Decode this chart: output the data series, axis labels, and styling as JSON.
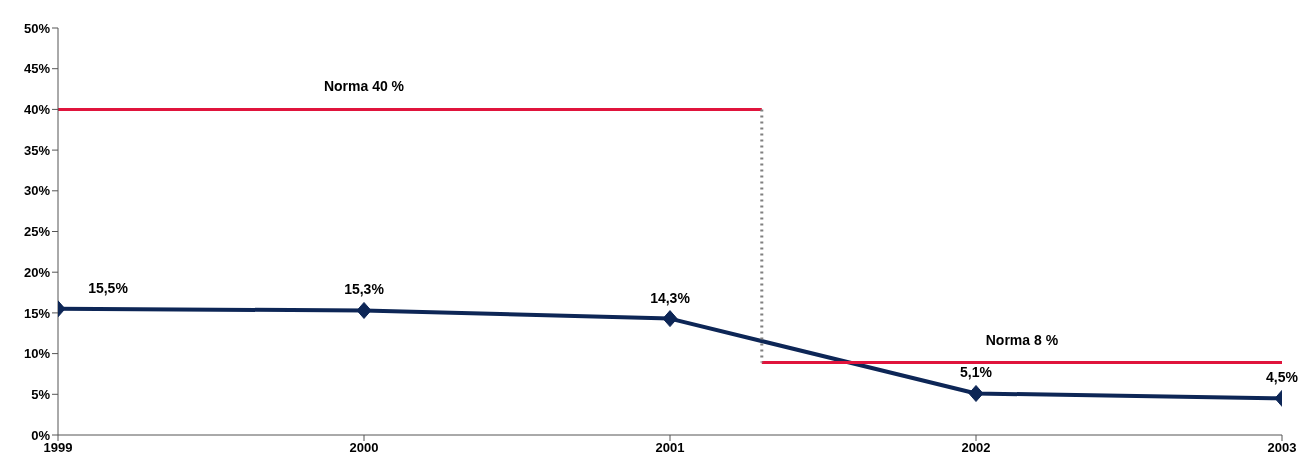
{
  "chart_data": {
    "type": "line",
    "x": [
      1999,
      2000,
      2001,
      2002,
      2003
    ],
    "xlim": [
      1999,
      2003
    ],
    "xticks": [
      1999,
      2000,
      2001,
      2002,
      2003
    ],
    "ylim": [
      0,
      50
    ],
    "yticks": [
      {
        "value": 0,
        "label": "0%"
      },
      {
        "value": 5,
        "label": "5%"
      },
      {
        "value": 10,
        "label": "10%"
      },
      {
        "value": 15,
        "label": "15%"
      },
      {
        "value": 20,
        "label": "20%"
      },
      {
        "value": 25,
        "label": "25%"
      },
      {
        "value": 30,
        "label": "30%"
      },
      {
        "value": 35,
        "label": "35%"
      },
      {
        "value": 40,
        "label": "40%"
      },
      {
        "value": 45,
        "label": "45%"
      },
      {
        "value": 50,
        "label": "50%"
      }
    ],
    "grid": false,
    "series": [
      {
        "color": "#0d2656",
        "values": [
          15.5,
          15.3,
          14.3,
          5.1,
          4.5
        ],
        "marker": "diamond",
        "line_style": "solid",
        "value_labels": [
          "15,5%",
          "15,3%",
          "14,3%",
          "5,1%",
          "4,5%"
        ]
      },
      {
        "color": "#e0143c",
        "x": [
          1999,
          2001.3
        ],
        "values": [
          40,
          40
        ],
        "marker": "none",
        "line_style": "solid"
      },
      {
        "color": "#e0143c",
        "x": [
          2001.3,
          2003
        ],
        "values": [
          8.9,
          8.9
        ],
        "marker": "none",
        "line_style": "solid"
      },
      {
        "color": "#808080",
        "x": [
          2001.3,
          2001.3
        ],
        "values": [
          40,
          8.9
        ],
        "marker": "none",
        "line_style": "dotted"
      }
    ],
    "annotations": [
      {
        "text": "Norma 40 %",
        "x": 2000,
        "y": 40
      },
      {
        "text": "Norma 8 %",
        "x": 2002.15,
        "y": 8.9
      }
    ]
  }
}
